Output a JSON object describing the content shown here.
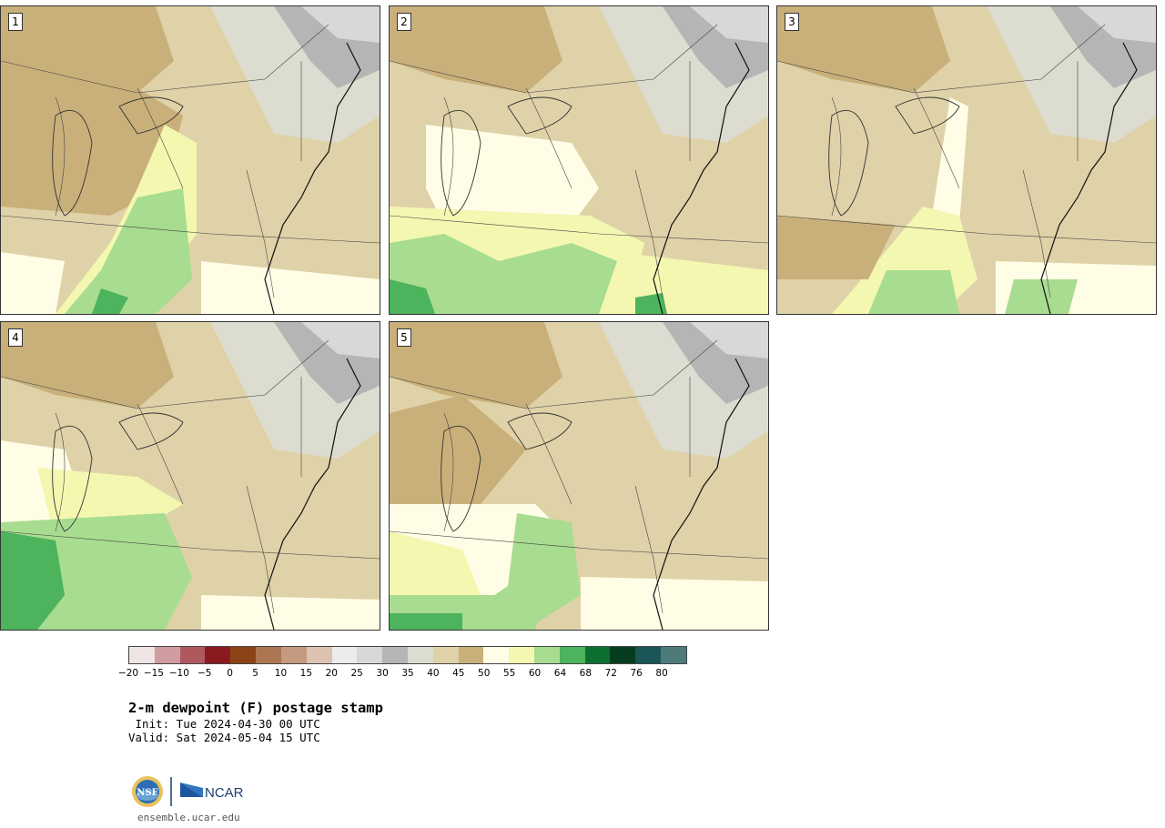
{
  "panels": [
    {
      "label": "1",
      "variant": "cool-north",
      "green_extent": "moderate"
    },
    {
      "label": "2",
      "variant": "pale-lakes",
      "green_extent": "large-southwest"
    },
    {
      "label": "3",
      "variant": "dry-band",
      "green_extent": "small"
    },
    {
      "label": "4",
      "variant": "wet-southwest",
      "green_extent": "large"
    },
    {
      "label": "5",
      "variant": "wet-southwest-2",
      "green_extent": "moderate"
    }
  ],
  "legend": {
    "colors": [
      "#f0e3e3",
      "#d09ca0",
      "#b05860",
      "#8b1a20",
      "#8c4316",
      "#ad7653",
      "#c49a80",
      "#ddc2b2",
      "#ececec",
      "#d8d8d8",
      "#b5b5b5",
      "#dcdcd0",
      "#dfd2a8",
      "#c9b07a",
      "#fffde6",
      "#f3f7b0",
      "#a8dc90",
      "#4db35c",
      "#0e7030",
      "#063d1f",
      "#1c5558",
      "#4e7a7c"
    ],
    "tick_labels": [
      "−20",
      "−15",
      "−10",
      "−5",
      "0",
      "5",
      "10",
      "15",
      "20",
      "25",
      "30",
      "35",
      "40",
      "45",
      "50",
      "55",
      "60",
      "64",
      "68",
      "72",
      "76",
      "80"
    ]
  },
  "title": {
    "main": "2-m dewpoint (F) postage stamp",
    "init": " Init: Tue 2024-04-30 00 UTC",
    "valid": "Valid: Sat 2024-05-04 15 UTC"
  },
  "footer": {
    "nsf": "NSF",
    "ncar": "NCAR",
    "site": "ensemble.ucar.edu"
  }
}
